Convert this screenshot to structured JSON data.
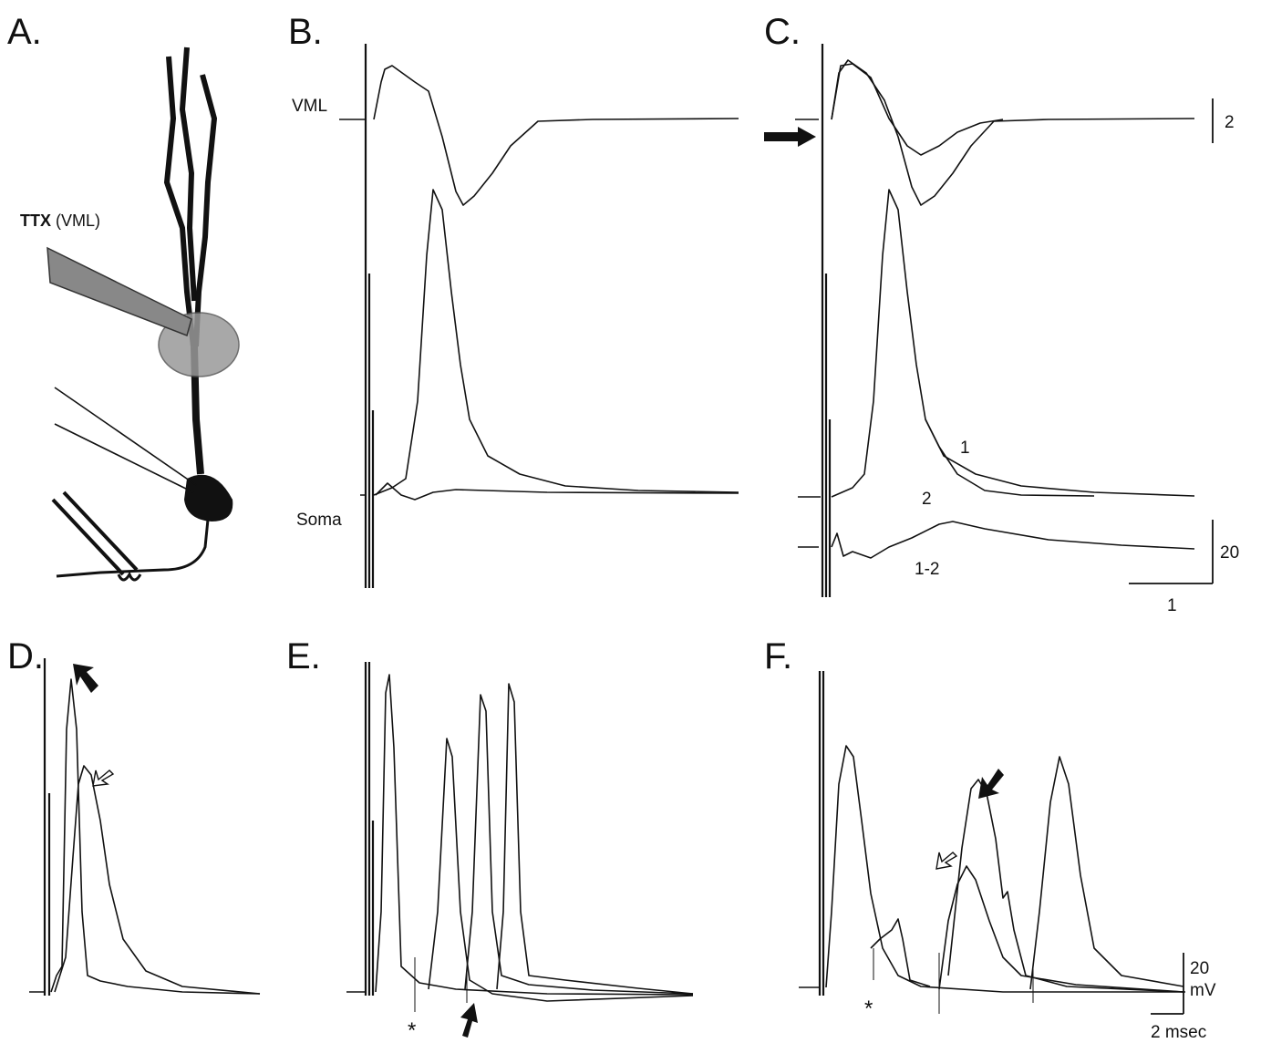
{
  "panels": {
    "a": {
      "label": "A.",
      "drug": "TTX",
      "site": "(VML)"
    },
    "b": {
      "label": "B.",
      "top_trace": "VML",
      "bottom_trace": "Soma"
    },
    "c": {
      "label": "C.",
      "scale_top": "2",
      "trace_1": "1",
      "trace_2": "2",
      "trace_diff": "1-2",
      "scale_y": "20",
      "scale_x": "1"
    },
    "d": {
      "label": "D."
    },
    "e": {
      "label": "E.",
      "marker": "*"
    },
    "f": {
      "label": "F.",
      "marker": "*",
      "scale_y": "20",
      "scale_y_unit": "mV",
      "scale_x": "2 msec"
    }
  }
}
